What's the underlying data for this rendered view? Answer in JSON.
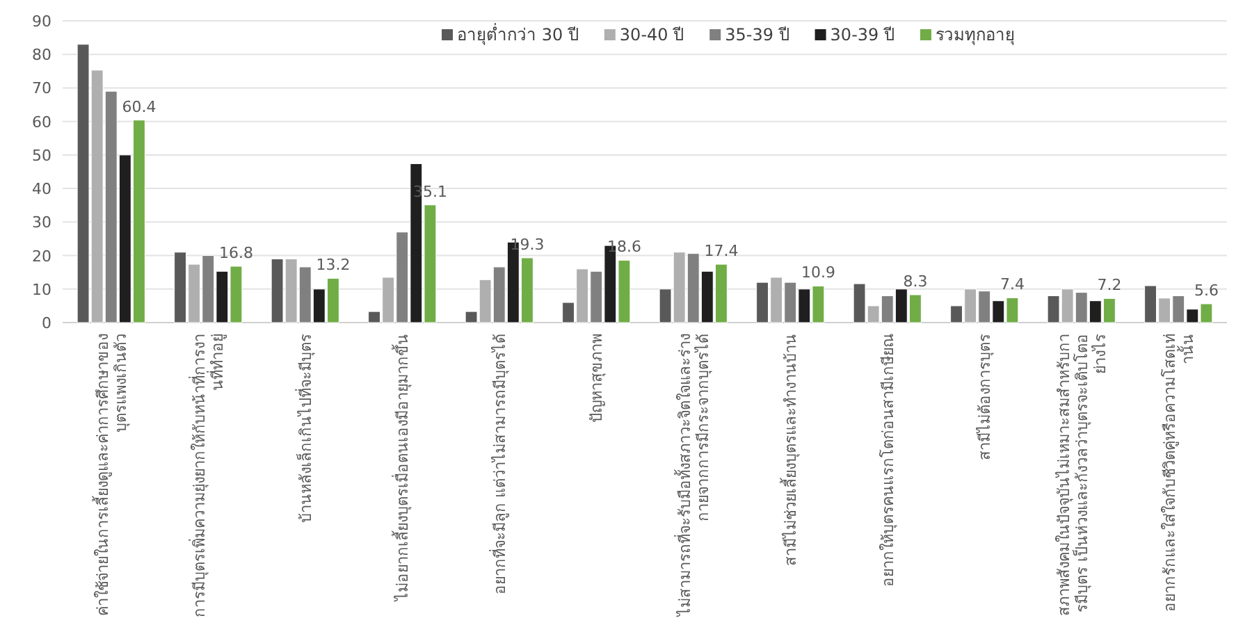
{
  "chart_data": {
    "type": "bar",
    "categories": [
      "ค่าใช้จ่ายในการเลี้ยงดูและค่าการศึกษาของบุตรแพงเกินตัว",
      "การมีบุตรเพิ่มความยุ่งยากให้กับหน้าที่การงานที่ทำอยู่",
      "บ้านหลังเล็กเกินไปที่จะมีบุตร",
      "ไม่อยากเลี้ยงบุตรเมื่อตนเองมีอายุมากขึ้น",
      "อยากที่จะมีลูก  แต่ว่าไม่สามารถมีบุตรได้",
      "ปัญหาสุขภาพ",
      "ไม่สามารถที่จะรับมือทั้งสภาวะจิตใจและร่างกายจากการมีกระจากบุตรได้",
      "สามีไม่ช่วยเลี้ยงบุตรและทำงานบ้าน",
      "อยากให้บุตรคนแรกโตก่อนสามีเกษียณ",
      "สามีไม่ต้องการบุตร",
      "สภาพสังคมในปัจจุบันไม่เหมาะสมสำหรับการมีบุตร  เป็นห่วงและกังวลว่าบุตรจะเติบโตอย่างไร",
      "อยากรักและใส่ใจกับชีวิตคู่หรือความโสดเท่านั้น"
    ],
    "series": [
      {
        "name": "อายุต่ำกว่า 30 ปี",
        "color": "#595959",
        "values": [
          83,
          21,
          19,
          3.3,
          3.3,
          6,
          10,
          12,
          11.6,
          5,
          8,
          11
        ]
      },
      {
        "name": "30-40 ปี",
        "color": "#afafaf",
        "values": [
          75.3,
          17.4,
          19,
          13.5,
          12.8,
          16,
          21,
          13.5,
          5,
          10,
          10,
          7.3
        ]
      },
      {
        "name": "35-39 ปี",
        "color": "#808080",
        "values": [
          69,
          20,
          16.6,
          27,
          16.6,
          15.3,
          20.6,
          12,
          8,
          9.4,
          9,
          8
        ]
      },
      {
        "name": "30-39 ปี",
        "color": "#1f1f1f",
        "values": [
          50,
          15.3,
          10,
          47.4,
          24,
          23,
          15.3,
          10,
          10,
          6.5,
          6.5,
          4
        ]
      },
      {
        "name": "รวมทุกอายุ",
        "color": "#70ad47",
        "values": [
          60.4,
          16.8,
          13.2,
          35.1,
          19.3,
          18.6,
          17.4,
          10.9,
          8.3,
          7.4,
          7.2,
          5.6
        ],
        "value_labels": [
          "60.4",
          "16.8",
          "13.2",
          "35.1",
          "19.3",
          "18.6",
          "17.4",
          "10.9",
          "8.3",
          "7.4",
          "7.2",
          "5.6"
        ]
      }
    ],
    "ylim": [
      0,
      90
    ],
    "yticks": [
      0,
      10,
      20,
      30,
      40,
      50,
      60,
      70,
      80,
      90
    ],
    "grid": "y",
    "legend": "top"
  }
}
